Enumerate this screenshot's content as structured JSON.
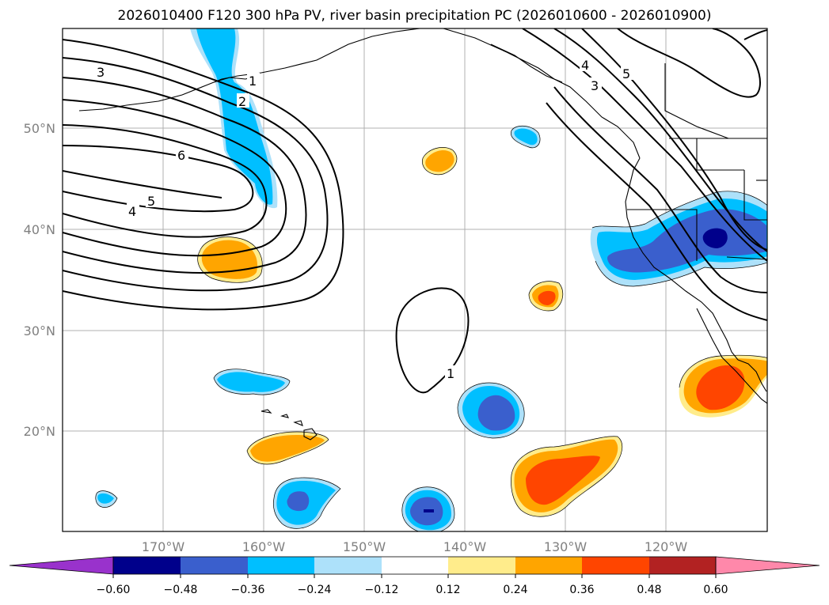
{
  "title": "2026010400 F120 300 hPa PV, river basin precipitation PC (2026010600 - 2026010900)",
  "map": {
    "lon_labels": [
      "170°W",
      "160°W",
      "150°W",
      "140°W",
      "130°W",
      "120°W"
    ],
    "lat_labels": [
      "50°N",
      "40°N",
      "30°N",
      "20°N"
    ]
  },
  "pv_contour_labels": [
    "3",
    "1",
    "2",
    "6",
    "5",
    "4",
    "4",
    "3",
    "5",
    "1"
  ],
  "colorbar": {
    "ticks": [
      "−0.60",
      "−0.48",
      "−0.36",
      "−0.24",
      "−0.12",
      "0.12",
      "0.24",
      "0.36",
      "0.48",
      "0.60"
    ],
    "colors": [
      "#9932cc",
      "#00008b",
      "#3a5fcd",
      "#00bfff",
      "#ade1fa",
      "#ffffff",
      "#ffec8b",
      "#ffa500",
      "#ff4500",
      "#b22222",
      "#ff88aa"
    ]
  }
}
